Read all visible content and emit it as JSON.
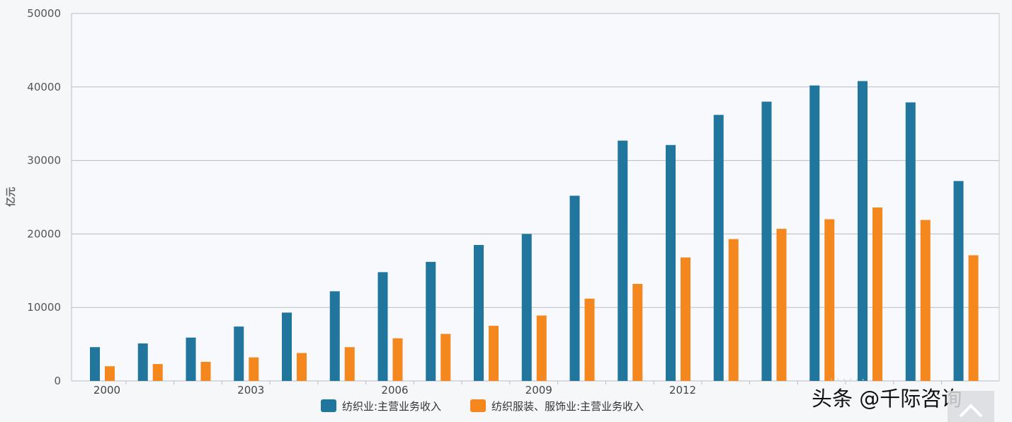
{
  "chart_data": {
    "type": "bar",
    "title": "",
    "xlabel": "",
    "ylabel": "亿元",
    "ylim": [
      0,
      50000
    ],
    "yticks": [
      0,
      10000,
      20000,
      30000,
      40000,
      50000
    ],
    "categories": [
      "2000",
      "2001",
      "2002",
      "2003",
      "2004",
      "2005",
      "2006",
      "2007",
      "2008",
      "2009",
      "2010",
      "2011",
      "2012",
      "2013",
      "2014",
      "2015",
      "2016",
      "2017",
      "2018"
    ],
    "xtick_labels": [
      "2000",
      "",
      "",
      "2003",
      "",
      "",
      "2006",
      "",
      "",
      "2009",
      "",
      "",
      "2012",
      "",
      "",
      "",
      "",
      "",
      ""
    ],
    "grid": true,
    "legend_position": "bottom-center",
    "series": [
      {
        "name": "纺织业:主营业务收入",
        "color": "#21769e",
        "values": [
          4600,
          5100,
          5900,
          7400,
          9300,
          12200,
          14800,
          16200,
          18500,
          20000,
          25200,
          32700,
          32100,
          36200,
          38000,
          40200,
          40800,
          37900,
          27200
        ]
      },
      {
        "name": "纺织服装、服饰业:主营业务收入",
        "color": "#f5871f",
        "values": [
          2000,
          2300,
          2600,
          3200,
          3800,
          4600,
          5800,
          6400,
          7500,
          8900,
          11200,
          13200,
          16800,
          19300,
          20700,
          22000,
          23600,
          21900,
          17100
        ]
      }
    ]
  },
  "watermark": {
    "text": "头条 @千际咨询",
    "faint_text": "·   ·   ·   ·   ·   ·"
  }
}
